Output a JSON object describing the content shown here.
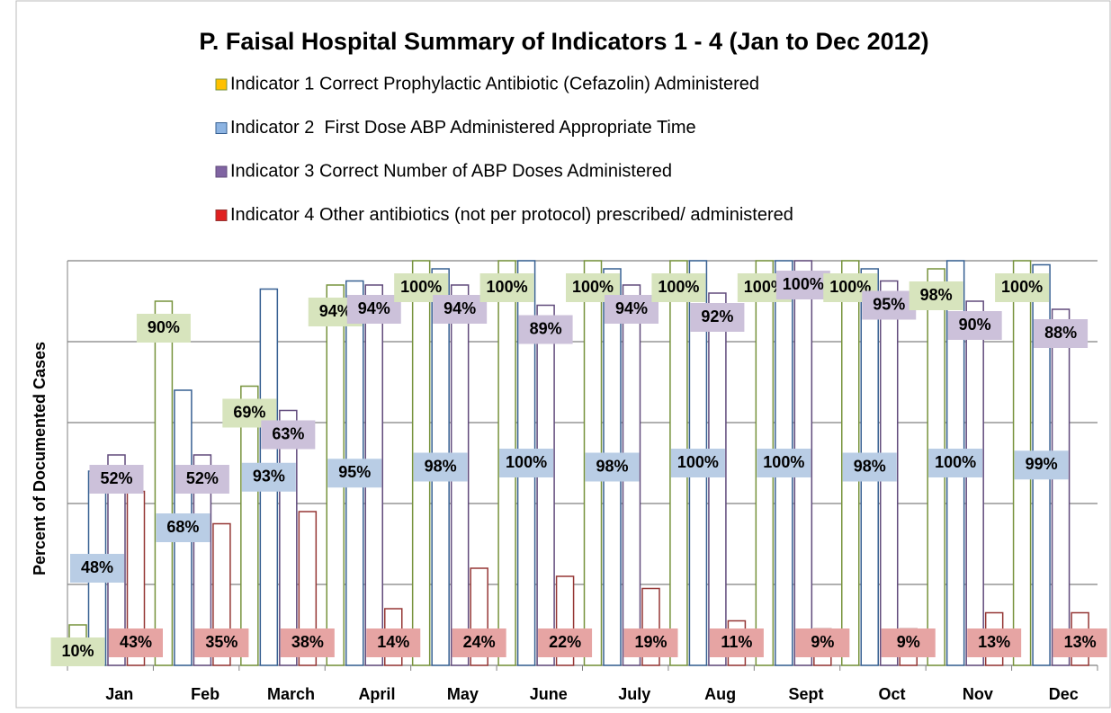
{
  "chart_data": {
    "type": "bar",
    "title": "P. Faisal Hospital Summary of Indicators 1 - 4 (Jan to Dec 2012)",
    "y_label": "Percent of Documented Cases",
    "categories": [
      "Jan",
      "Feb",
      "March",
      "April",
      "May",
      "June",
      "July",
      "Aug",
      "Sept",
      "Oct",
      "Nov",
      "Dec"
    ],
    "series": [
      {
        "name": "Indicator 1 Correct Prophylactic Antibiotic (Cefazolin) Administered",
        "color": "#77933c",
        "label_color": "#d7e4bd",
        "legend_color": "#ffc000",
        "values": [
          10,
          90,
          69,
          94,
          100,
          100,
          100,
          100,
          100,
          100,
          98,
          100
        ],
        "value_labels": [
          "10%",
          "90%",
          "69%",
          "94%",
          "100%",
          "100%",
          "100%",
          "100%",
          "100%",
          "100%",
          "98%",
          "100%"
        ]
      },
      {
        "name": "Indicator 2  First Dose ABP Administered Appropriate Time",
        "color": "#376092",
        "label_color": "#b9cde5",
        "legend_color": "#8db4e2",
        "values": [
          48,
          68,
          93,
          95,
          98,
          100,
          98,
          100,
          100,
          98,
          100,
          99
        ],
        "value_labels": [
          "48%",
          "68%",
          "93%",
          "95%",
          "98%",
          "100%",
          "98%",
          "100%",
          "100%",
          "98%",
          "100%",
          "99%"
        ]
      },
      {
        "name": "Indicator 3 Correct Number of ABP Doses Administered",
        "color": "#604a7b",
        "label_color": "#ccc1da",
        "legend_color": "#8064a2",
        "values": [
          52,
          52,
          63,
          94,
          94,
          89,
          94,
          92,
          100,
          95,
          90,
          88
        ],
        "value_labels": [
          "52%",
          "52%",
          "63%",
          "94%",
          "94%",
          "89%",
          "94%",
          "92%",
          "100%",
          "95%",
          "90%",
          "88%"
        ]
      },
      {
        "name": "Indicator 4 Other antibiotics (not per protocol) prescribed/ administered",
        "color": "#953735",
        "label_color": "#e6a4a3",
        "legend_color": "#e02020",
        "values": [
          43,
          35,
          38,
          14,
          24,
          22,
          19,
          11,
          9,
          9,
          13,
          13
        ],
        "value_labels": [
          "43%",
          "35%",
          "38%",
          "14%",
          "24%",
          "22%",
          "19%",
          "11%",
          "9%",
          "9%",
          "13%",
          "13%"
        ]
      }
    ],
    "ylim": [
      0,
      100
    ],
    "yticks": [
      0,
      20,
      40,
      60,
      80,
      100
    ],
    "grid": true
  }
}
